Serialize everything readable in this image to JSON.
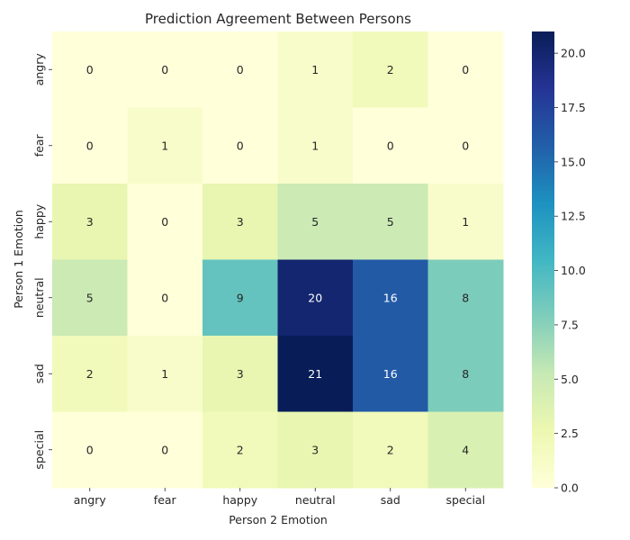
{
  "chart_data": {
    "type": "heatmap",
    "title": "Prediction Agreement Between Persons",
    "xlabel": "Person 2 Emotion",
    "ylabel": "Person 1 Emotion",
    "x_categories": [
      "angry",
      "fear",
      "happy",
      "neutral",
      "sad",
      "special"
    ],
    "y_categories": [
      "angry",
      "fear",
      "happy",
      "neutral",
      "sad",
      "special"
    ],
    "values": [
      [
        0,
        0,
        0,
        1,
        2,
        0
      ],
      [
        0,
        1,
        0,
        1,
        0,
        0
      ],
      [
        3,
        0,
        3,
        5,
        5,
        1
      ],
      [
        5,
        0,
        9,
        20,
        16,
        8
      ],
      [
        2,
        1,
        3,
        21,
        16,
        8
      ],
      [
        0,
        0,
        2,
        3,
        2,
        4
      ]
    ],
    "colormap": "YlGnBu",
    "vmin": 0,
    "vmax": 21,
    "colorbar_ticks": [
      "0.0",
      "2.5",
      "5.0",
      "7.5",
      "10.0",
      "12.5",
      "15.0",
      "17.5",
      "20.0"
    ],
    "annotated": true
  }
}
